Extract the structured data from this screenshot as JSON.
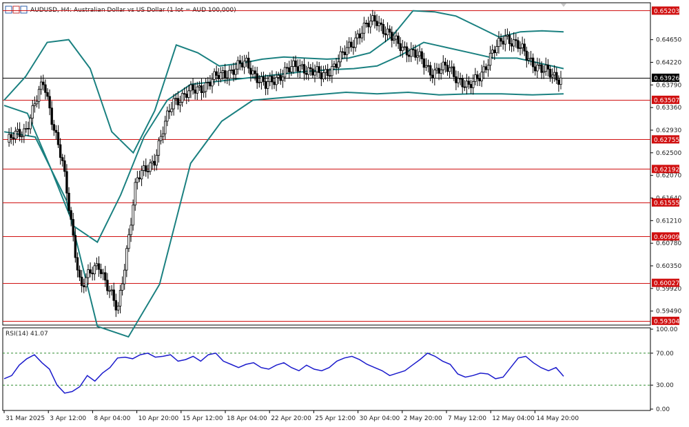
{
  "title": "AUDUSD, H4:  Australian Dollar vs US Dollar (1 lot = AUD 100,000)",
  "colors": {
    "candle": "#000000",
    "bands": "#1a8080",
    "level_line": "#d01010",
    "level_label_bg": "#d01010",
    "current_label_bg": "#000000",
    "rsi_line": "#1a1acc",
    "rsi_level": "#2e8b2e"
  },
  "price_axis": {
    "ticks": [
      "0.64650",
      "0.64220",
      "0.63790",
      "0.63360",
      "0.62930",
      "0.62500",
      "0.62070",
      "0.61640",
      "0.61210",
      "0.60780",
      "0.60350",
      "0.59920",
      "0.59490"
    ]
  },
  "levels": [
    "0.65203",
    "0.63507",
    "0.62755",
    "0.62192",
    "0.61555",
    "0.60909",
    "0.60027",
    "0.59304"
  ],
  "current_price": "0.63926",
  "time_axis": {
    "labels": [
      "31 Mar 2025",
      "3 Apr 12:00",
      "8 Apr 04:00",
      "10 Apr 20:00",
      "15 Apr 12:00",
      "18 Apr 04:00",
      "22 Apr 20:00",
      "25 Apr 12:00",
      "30 Apr 04:00",
      "2 May 20:00",
      "7 May 12:00",
      "12 May 04:00",
      "14 May 20:00"
    ]
  },
  "rsi": {
    "label": "RSI(14) 41.07",
    "axis_ticks": [
      "100.00",
      "70.00",
      "30.00",
      "0.00"
    ],
    "levels": [
      70,
      30
    ]
  },
  "chart_data": [
    {
      "type": "candlestick",
      "title": "AUDUSD, H4:  Australian Dollar vs US Dollar (1 lot = AUD 100,000)",
      "indicator": "Bollinger Bands",
      "ylim": [
        0.5925,
        0.653
      ],
      "x_range": [
        "31 Mar 2025",
        "15 May 2025"
      ],
      "close_anchors": [
        {
          "t": "31 Mar 2025",
          "close": 0.627
        },
        {
          "t": "2 Apr",
          "close": 0.6295
        },
        {
          "t": "3 Apr 12:00",
          "close": 0.6385
        },
        {
          "t": "4 Apr",
          "close": 0.623
        },
        {
          "t": "7 Apr",
          "close": 0.5995
        },
        {
          "t": "8 Apr 04:00",
          "close": 0.604
        },
        {
          "t": "9 Apr",
          "close": 0.5945
        },
        {
          "t": "10 Apr",
          "close": 0.6195
        },
        {
          "t": "10 Apr 20:00",
          "close": 0.624
        },
        {
          "t": "14 Apr",
          "close": 0.635
        },
        {
          "t": "15 Apr 12:00",
          "close": 0.6365
        },
        {
          "t": "17 Apr",
          "close": 0.6385
        },
        {
          "t": "18 Apr 04:00",
          "close": 0.6405
        },
        {
          "t": "21 Apr",
          "close": 0.642
        },
        {
          "t": "22 Apr 20:00",
          "close": 0.6375
        },
        {
          "t": "25 Apr 12:00",
          "close": 0.6405
        },
        {
          "t": "28 Apr",
          "close": 0.6415
        },
        {
          "t": "30 Apr 04:00",
          "close": 0.6395
        },
        {
          "t": "1 May",
          "close": 0.6425
        },
        {
          "t": "2 May 20:00",
          "close": 0.6475
        },
        {
          "t": "5 May",
          "close": 0.6505
        },
        {
          "t": "6 May",
          "close": 0.646
        },
        {
          "t": "7 May 12:00",
          "close": 0.644
        },
        {
          "t": "8 May",
          "close": 0.6405
        },
        {
          "t": "9 May",
          "close": 0.641
        },
        {
          "t": "12 May 04:00",
          "close": 0.637
        },
        {
          "t": "12 May 20:00",
          "close": 0.642
        },
        {
          "t": "13 May",
          "close": 0.6475
        },
        {
          "t": "14 May",
          "close": 0.644
        },
        {
          "t": "14 May 20:00",
          "close": 0.6405
        },
        {
          "t": "15 May",
          "close": 0.6393
        }
      ],
      "bollinger_upper": [
        0.635,
        0.6395,
        0.646,
        0.6465,
        0.641,
        0.629,
        0.625,
        0.633,
        0.6455,
        0.644,
        0.6415,
        0.642,
        0.6428,
        0.6432,
        0.643,
        0.6428,
        0.643,
        0.644,
        0.647,
        0.652,
        0.6518,
        0.651,
        0.649,
        0.647,
        0.648,
        0.6482,
        0.648
      ],
      "bollinger_middle": [
        0.634,
        0.6325,
        0.622,
        0.611,
        0.608,
        0.617,
        0.628,
        0.635,
        0.638,
        0.6385,
        0.639,
        0.6395,
        0.64,
        0.6405,
        0.6408,
        0.641,
        0.6415,
        0.6435,
        0.646,
        0.645,
        0.644,
        0.643,
        0.643,
        0.642,
        0.641
      ],
      "bollinger_lower": [
        0.629,
        0.628,
        0.616,
        0.592,
        0.59,
        0.6,
        0.623,
        0.631,
        0.635,
        0.6355,
        0.636,
        0.6365,
        0.6362,
        0.6365,
        0.636,
        0.6362,
        0.6362,
        0.636,
        0.6362
      ],
      "levels": [
        0.65203,
        0.63507,
        0.62755,
        0.62192,
        0.61555,
        0.60909,
        0.60027,
        0.59304
      ],
      "current_price": 0.63926
    },
    {
      "type": "line",
      "title": "RSI(14) 41.07",
      "ylim": [
        0,
        100
      ],
      "levels": [
        70,
        30
      ],
      "values": [
        38,
        42,
        55,
        63,
        68,
        58,
        50,
        30,
        20,
        22,
        28,
        42,
        35,
        45,
        52,
        64,
        65,
        63,
        68,
        70,
        65,
        66,
        68,
        60,
        62,
        66,
        60,
        68,
        70,
        60,
        56,
        52,
        56,
        58,
        52,
        50,
        55,
        58,
        52,
        48,
        55,
        50,
        48,
        52,
        60,
        64,
        66,
        62,
        56,
        52,
        48,
        42,
        45,
        48,
        55,
        62,
        70,
        66,
        60,
        56,
        44,
        40,
        42,
        45,
        44,
        38,
        40,
        52,
        64,
        66,
        58,
        52,
        48,
        52,
        41.07
      ]
    }
  ]
}
